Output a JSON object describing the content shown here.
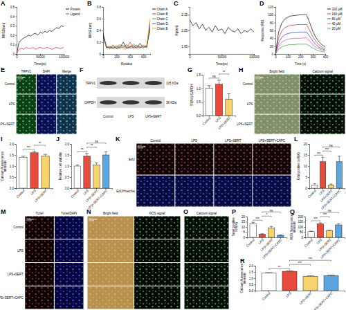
{
  "chart_data": [
    {
      "panel": "A",
      "type": "line",
      "xlabel": "Time(ps)",
      "ylabel": "RMSD(nm)",
      "x": [
        0,
        5000,
        10000,
        15000,
        20000,
        25000,
        30000,
        35000,
        40000,
        45000,
        50000,
        55000,
        60000,
        65000,
        70000,
        75000,
        80000,
        85000,
        90000,
        95000,
        100000
      ],
      "xlim": [
        0,
        100000
      ],
      "xticks": [
        0,
        50000,
        100000
      ],
      "ylim": [
        0,
        0.5
      ],
      "yticks": [
        0,
        0.1,
        0.2,
        0.3,
        0.4,
        0.5
      ],
      "series": [
        {
          "name": "Protein",
          "color": "#000000",
          "values": [
            0,
            0.12,
            0.15,
            0.17,
            0.18,
            0.2,
            0.19,
            0.21,
            0.22,
            0.2,
            0.23,
            0.22,
            0.24,
            0.23,
            0.25,
            0.24,
            0.26,
            0.28,
            0.27,
            0.3,
            0.29
          ]
        },
        {
          "name": "Ligand",
          "color": "#e41a1c",
          "values": [
            0,
            0.05,
            0.06,
            0.05,
            0.07,
            0.06,
            0.06,
            0.07,
            0.05,
            0.06,
            0.07,
            0.06,
            0.06,
            0.07,
            0.06,
            0.05,
            0.06,
            0.07,
            0.06,
            0.06,
            0.07
          ]
        }
      ]
    },
    {
      "panel": "B",
      "type": "line",
      "xlabel": "Residue",
      "ylabel": "RMSF(nm)",
      "x": [
        0,
        50,
        100,
        150,
        200,
        250,
        300,
        350,
        400,
        450,
        500,
        550,
        600,
        650,
        700
      ],
      "xlim": [
        0,
        700
      ],
      "xticks": [
        0,
        200,
        400,
        600
      ],
      "ylim": [
        0,
        0.8
      ],
      "yticks": [
        0,
        0.2,
        0.4,
        0.6,
        0.8
      ],
      "series": [
        {
          "name": "Chain A",
          "color": "#000000",
          "values": [
            0.35,
            0.12,
            0.1,
            0.15,
            0.09,
            0.11,
            0.2,
            0.1,
            0.12,
            0.14,
            0.1,
            0.18,
            0.11,
            0.13,
            0.45
          ]
        },
        {
          "name": "Chain B",
          "color": "#e41a1c",
          "values": [
            0.3,
            0.1,
            0.13,
            0.09,
            0.12,
            0.16,
            0.1,
            0.11,
            0.2,
            0.1,
            0.12,
            0.1,
            0.15,
            0.12,
            0.5
          ]
        },
        {
          "name": "Chain C",
          "color": "#2ca02c",
          "values": [
            0.28,
            0.14,
            0.09,
            0.12,
            0.1,
            0.13,
            0.15,
            0.09,
            0.11,
            0.17,
            0.13,
            0.12,
            0.1,
            0.16,
            0.4
          ]
        },
        {
          "name": "Chain D",
          "color": "#1f3fbf",
          "values": [
            0.32,
            0.11,
            0.12,
            0.1,
            0.14,
            0.1,
            0.12,
            0.16,
            0.1,
            0.11,
            0.15,
            0.11,
            0.13,
            0.11,
            0.55
          ]
        },
        {
          "name": "Chain E",
          "color": "#ff8c00",
          "values": [
            0.25,
            0.13,
            0.11,
            0.14,
            0.11,
            0.12,
            0.11,
            0.13,
            0.14,
            0.12,
            0.11,
            0.14,
            0.12,
            0.14,
            0.6
          ]
        }
      ]
    },
    {
      "panel": "C",
      "type": "line",
      "xlabel": "Time(ps)",
      "ylabel": "Rg(nm)",
      "x": [
        0,
        5000,
        10000,
        15000,
        20000,
        25000,
        30000,
        35000,
        40000,
        45000,
        50000,
        55000,
        60000,
        65000,
        70000,
        75000,
        80000,
        85000,
        90000,
        95000,
        100000
      ],
      "xlim": [
        0,
        100000
      ],
      "xticks": [
        0,
        50000,
        100000
      ],
      "ylim": [
        1.9,
        2.2
      ],
      "yticks": [
        1.95,
        2.05,
        2.15
      ],
      "color": "#000000",
      "values": [
        2.12,
        2.08,
        2.1,
        2.06,
        2.09,
        2.05,
        2.07,
        2.04,
        2.08,
        2.05,
        2.06,
        2.03,
        2.07,
        2.05,
        2.04,
        2.06,
        2.03,
        2.05,
        2.04,
        2.06,
        2.04
      ]
    },
    {
      "panel": "D",
      "type": "line",
      "xlabel": "Time (s)",
      "ylabel": "Response (RU)",
      "x": [
        0,
        25,
        50,
        75,
        100,
        125,
        150,
        175,
        200,
        225,
        250,
        275,
        300,
        325,
        350,
        375,
        400
      ],
      "xlim": [
        0,
        400
      ],
      "xticks": [
        0,
        100,
        200,
        300,
        400
      ],
      "ylim": [
        0,
        120
      ],
      "yticks": [
        0,
        20,
        40,
        60,
        80,
        100,
        120
      ],
      "series": [
        {
          "name": "320 μM",
          "color": "#000000",
          "values": [
            0,
            55,
            78,
            89,
            94,
            97,
            98,
            99,
            100,
            100,
            100,
            80,
            58,
            42,
            31,
            23,
            18
          ]
        },
        {
          "name": "160 μM",
          "color": "#e41a1c",
          "values": [
            0,
            40,
            58,
            67,
            71,
            73,
            74,
            75,
            75,
            75,
            75,
            60,
            44,
            32,
            23,
            17,
            13
          ]
        },
        {
          "name": "80 μM",
          "color": "#1f3fbf",
          "values": [
            0,
            28,
            42,
            49,
            52,
            54,
            55,
            55,
            56,
            56,
            56,
            45,
            33,
            24,
            17,
            13,
            10
          ]
        },
        {
          "name": "40 μM",
          "color": "#e040c0",
          "values": [
            0,
            20,
            30,
            35,
            38,
            39,
            40,
            40,
            40,
            41,
            41,
            33,
            24,
            17,
            13,
            10,
            8
          ]
        },
        {
          "name": "20 μM",
          "color": "#2ca02c",
          "values": [
            0,
            12,
            18,
            21,
            23,
            24,
            24,
            25,
            25,
            25,
            25,
            20,
            15,
            11,
            8,
            6,
            5
          ]
        }
      ]
    },
    {
      "panel": "G",
      "type": "bar",
      "ylabel": "TRPV1/GAPDH",
      "categories": [
        "Control",
        "LPS",
        "LPS+SERT"
      ],
      "values": [
        1.0,
        1.15,
        0.6
      ],
      "errors": [
        0.1,
        0.15,
        0.2
      ],
      "colors": [
        "#ffffff",
        "#e84a3c",
        "#f6d36b"
      ],
      "ylim": [
        0,
        1.5
      ],
      "yticks": [
        {
          "value": 0,
          "label": "0.0"
        },
        0.5,
        {
          "value": 1,
          "label": "1.0"
        },
        1.5
      ],
      "significance": [
        {
          "pair": [
            0,
            1
          ],
          "label": "ns"
        },
        {
          "pair": [
            1,
            2
          ],
          "label": "**"
        }
      ]
    },
    {
      "panel": "I",
      "type": "bar",
      "ylabel": "Calcium fluorescence intensity",
      "categories": [
        "Control",
        "LPS",
        "LPS+SERT"
      ],
      "values": [
        1.4,
        1.6,
        1.45
      ],
      "errors": [
        0.05,
        0.06,
        0.08
      ],
      "colors": [
        "#ffffff",
        "#e84a3c",
        "#f6d36b"
      ],
      "ylim": [
        0,
        2
      ],
      "yticks": [
        {
          "value": 0,
          "label": "0.0"
        },
        0.5,
        {
          "value": 1,
          "label": "1.0"
        },
        1.5,
        {
          "value": 2,
          "label": "2.0"
        }
      ],
      "significance": [
        {
          "pair": [
            0,
            1
          ],
          "label": "***"
        },
        {
          "pair": [
            1,
            2
          ],
          "label": "**"
        }
      ]
    },
    {
      "panel": "J",
      "type": "bar",
      "ylabel": "Relative cell viability",
      "categories": [
        "Control",
        "LPS",
        "LPS+SERT",
        "LPS+SERT+CAPC"
      ],
      "values": [
        1.0,
        1.45,
        1.05,
        1.5
      ],
      "errors": [
        0.05,
        0.12,
        0.1,
        0.15
      ],
      "colors": [
        "#ffffff",
        "#e84a3c",
        "#f6d36b",
        "#5aa6e0"
      ],
      "ylim": [
        0,
        2
      ],
      "yticks": [
        {
          "value": 0,
          "label": "0.0"
        },
        0.5,
        {
          "value": 1,
          "label": "1.0"
        },
        1.5,
        {
          "value": 2,
          "label": "2.0"
        }
      ],
      "significance": [
        {
          "pair": [
            0,
            1
          ],
          "label": "**"
        },
        {
          "pair": [
            1,
            2
          ],
          "label": "**"
        },
        {
          "pair": [
            1,
            3
          ],
          "label": "ns"
        }
      ]
    },
    {
      "panel": "L",
      "type": "bar",
      "ylabel": "Edu positive cell(%)",
      "categories": [
        "Control",
        "LPS",
        "LPS+SERT",
        "LPS+SERT+CAPC"
      ],
      "values": [
        1.5,
        12,
        1.5,
        12
      ],
      "errors": [
        0.5,
        2,
        0.4,
        2.5
      ],
      "colors": [
        "#ffffff",
        "#e84a3c",
        "#f6d36b",
        "#5aa6e0"
      ],
      "ylim": [
        0,
        20
      ],
      "yticks": [
        0,
        5,
        10,
        15,
        20
      ],
      "significance": [
        {
          "pair": [
            0,
            1
          ],
          "label": "***"
        },
        {
          "pair": [
            1,
            2
          ],
          "label": "***"
        },
        {
          "pair": [
            1,
            3
          ],
          "label": "ns"
        }
      ]
    },
    {
      "panel": "P",
      "type": "bar",
      "ylabel": "Tunel positive cell(%)",
      "categories": [
        "Control",
        "LPS",
        "LPS+SERT",
        "LPS+SERT+CAPC"
      ],
      "values": [
        13,
        3,
        9,
        2
      ],
      "errors": [
        1.5,
        0.5,
        1.5,
        0.3
      ],
      "colors": [
        "#ffffff",
        "#e84a3c",
        "#f6d36b",
        "#5aa6e0"
      ],
      "ylim": [
        0,
        20
      ],
      "yticks": [
        0,
        5,
        10,
        15,
        20
      ],
      "significance": [
        {
          "pair": [
            0,
            1
          ],
          "label": "***"
        },
        {
          "pair": [
            1,
            2
          ],
          "label": "*"
        },
        {
          "pair": [
            1,
            3
          ],
          "label": "ns"
        }
      ]
    },
    {
      "panel": "Q",
      "type": "bar",
      "ylabel": "ROS fluorescence intensity",
      "categories": [
        "Control",
        "LPS",
        "LPS+SERT",
        "LPS+SERT+CAPC"
      ],
      "values": [
        55,
        130,
        65,
        120
      ],
      "errors": [
        5,
        10,
        6,
        12
      ],
      "colors": [
        "#ffffff",
        "#e84a3c",
        "#f6d36b",
        "#5aa6e0"
      ],
      "ylim": [
        0,
        200
      ],
      "yticks": [
        0,
        50,
        100,
        150,
        200
      ],
      "significance": [
        {
          "pair": [
            0,
            1
          ],
          "label": "***"
        },
        {
          "pair": [
            1,
            2
          ],
          "label": "***"
        },
        {
          "pair": [
            1,
            3
          ],
          "label": "ns"
        }
      ]
    },
    {
      "panel": "R",
      "type": "bar",
      "ylabel": "Calcium fluorescence intensity",
      "categories": [
        "Control",
        "LPS",
        "LPS+SERT",
        "LPS+SERT+CAPC"
      ],
      "values": [
        1.4,
        1.55,
        1.15,
        1.2
      ],
      "errors": [
        0.05,
        0.05,
        0.05,
        0.05
      ],
      "colors": [
        "#ffffff",
        "#e84a3c",
        "#f6d36b",
        "#5aa6e0"
      ],
      "ylim": [
        0,
        2
      ],
      "yticks": [
        {
          "value": 0,
          "label": "0.0"
        },
        0.5,
        {
          "value": 1,
          "label": "1.0"
        },
        1.5,
        {
          "value": 2,
          "label": "2.0"
        }
      ],
      "significance": [
        {
          "pair": [
            0,
            1
          ],
          "label": "**"
        },
        {
          "pair": [
            1,
            2
          ],
          "label": "***"
        },
        {
          "pair": [
            1,
            3
          ],
          "label": "***"
        }
      ]
    }
  ],
  "blot": {
    "panel": "F",
    "lanes": [
      "Control",
      "LPS",
      "LPS+SERT"
    ],
    "bands": [
      {
        "name": "TRPV1",
        "size": "105 KDa"
      },
      {
        "name": "GAPDH",
        "size": "36 KDa"
      }
    ]
  },
  "image_panels": [
    {
      "panel": "E",
      "columns": [
        "TRPV1",
        "DAPI",
        "Merge"
      ],
      "rows": [
        "Control",
        "LPS",
        "LPS+SERT"
      ],
      "scale_bar": "100μm"
    },
    {
      "panel": "H",
      "columns": [
        "Bright field",
        "Calcium signal"
      ],
      "rows": [
        "Control",
        "LPS",
        "LPS+SERT"
      ],
      "scale_bar": "100μm"
    },
    {
      "panel": "K",
      "columns": [
        "Control",
        "LPS",
        "LPS+SERT",
        "LPS+SERT+CAPC"
      ],
      "rows": [
        "EdU",
        "EdU/Hoechst"
      ],
      "scale_bar": "200μm"
    },
    {
      "panel": "M",
      "columns": [
        "Tunel",
        "Tunel/DAPI"
      ],
      "rows": [
        "Control",
        "LPS",
        "LPS+SERT",
        "LPS+SERT+CAPC"
      ],
      "scale_bar": "200μm"
    },
    {
      "panel": "N",
      "columns": [
        "Bright field",
        "ROS signal"
      ],
      "scale_bar": "100μm"
    },
    {
      "panel": "O",
      "columns": [
        "Calcium signal"
      ]
    }
  ]
}
